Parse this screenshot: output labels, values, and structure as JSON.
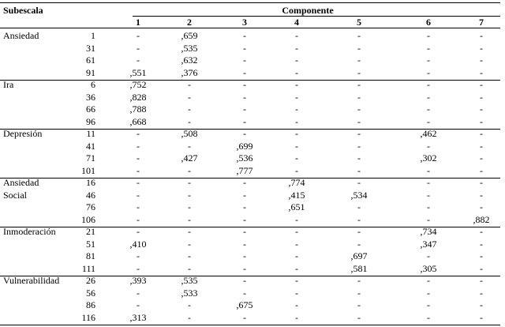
{
  "header": {
    "subescala": "Subescala",
    "componente": "Componente",
    "columns": [
      "1",
      "2",
      "3",
      "4",
      "5",
      "6",
      "7"
    ]
  },
  "groups": [
    {
      "label": [
        "Ansiedad"
      ],
      "rows": [
        {
          "item": 1,
          "values": [
            "-",
            ",659",
            "-",
            "-",
            "-",
            "-",
            "-"
          ]
        },
        {
          "item": 31,
          "values": [
            "-",
            ",535",
            "-",
            "-",
            "-",
            "-",
            "-"
          ]
        },
        {
          "item": 61,
          "values": [
            "-",
            ",632",
            "-",
            "-",
            "-",
            "-",
            "-"
          ]
        },
        {
          "item": 91,
          "values": [
            ",551",
            ",376",
            "-",
            "-",
            "-",
            "-",
            "-"
          ]
        }
      ]
    },
    {
      "label": [
        "Ira"
      ],
      "rows": [
        {
          "item": 6,
          "values": [
            ",752",
            "-",
            "-",
            "-",
            "-",
            "-",
            "-"
          ]
        },
        {
          "item": 36,
          "values": [
            ",828",
            "-",
            "-",
            "-",
            "-",
            "-",
            "-"
          ]
        },
        {
          "item": 66,
          "values": [
            ",788",
            "-",
            "-",
            "-",
            "-",
            "-",
            "-"
          ]
        },
        {
          "item": 96,
          "values": [
            ",668",
            "-",
            "-",
            "-",
            "-",
            "-",
            "-"
          ]
        }
      ]
    },
    {
      "label": [
        "Depresión"
      ],
      "rows": [
        {
          "item": 11,
          "values": [
            "-",
            ",508",
            "-",
            "-",
            "-",
            ",462",
            "-"
          ]
        },
        {
          "item": 41,
          "values": [
            "-",
            "-",
            ",699",
            "-",
            "-",
            "-",
            "-"
          ]
        },
        {
          "item": 71,
          "values": [
            "-",
            ",427",
            ",536",
            "-",
            "-",
            ",302",
            "-"
          ]
        },
        {
          "item": 101,
          "values": [
            "-",
            "-",
            ",777",
            "-",
            "-",
            "-",
            "-"
          ]
        }
      ]
    },
    {
      "label": [
        "Ansiedad",
        "Social"
      ],
      "rows": [
        {
          "item": 16,
          "values": [
            "-",
            "-",
            "-",
            ",774",
            "-",
            "-",
            "-"
          ]
        },
        {
          "item": 46,
          "values": [
            "-",
            "-",
            "-",
            ",415",
            ",534",
            "-",
            "-"
          ]
        },
        {
          "item": 76,
          "values": [
            "-",
            "-",
            "-",
            ",651",
            "-",
            "-",
            "-"
          ]
        },
        {
          "item": 106,
          "values": [
            "-",
            "-",
            "-",
            "-",
            "-",
            "-",
            ",882"
          ]
        }
      ]
    },
    {
      "label": [
        "Inmoderación"
      ],
      "rows": [
        {
          "item": 21,
          "values": [
            "-",
            "-",
            "-",
            "-",
            "-",
            ",734",
            "-"
          ]
        },
        {
          "item": 51,
          "values": [
            ",410",
            "-",
            "-",
            "-",
            "-",
            ",347",
            "-"
          ]
        },
        {
          "item": 81,
          "values": [
            "-",
            "-",
            "-",
            "-",
            ",697",
            "-",
            "-"
          ]
        },
        {
          "item": 111,
          "values": [
            "-",
            "-",
            "-",
            "-",
            ",581",
            ",305",
            "-"
          ]
        }
      ]
    },
    {
      "label": [
        "Vulnerabilidad"
      ],
      "rows": [
        {
          "item": 26,
          "values": [
            ",393",
            ",535",
            "-",
            "-",
            "-",
            "-",
            "-"
          ]
        },
        {
          "item": 56,
          "values": [
            "-",
            ",533",
            "-",
            "-",
            "-",
            "-",
            "-"
          ]
        },
        {
          "item": 86,
          "values": [
            "-",
            "-",
            ",675",
            "-",
            "-",
            "-",
            "-"
          ]
        },
        {
          "item": 116,
          "values": [
            ",313",
            "-",
            "-",
            "-",
            "-",
            "-",
            "-"
          ]
        }
      ]
    }
  ]
}
